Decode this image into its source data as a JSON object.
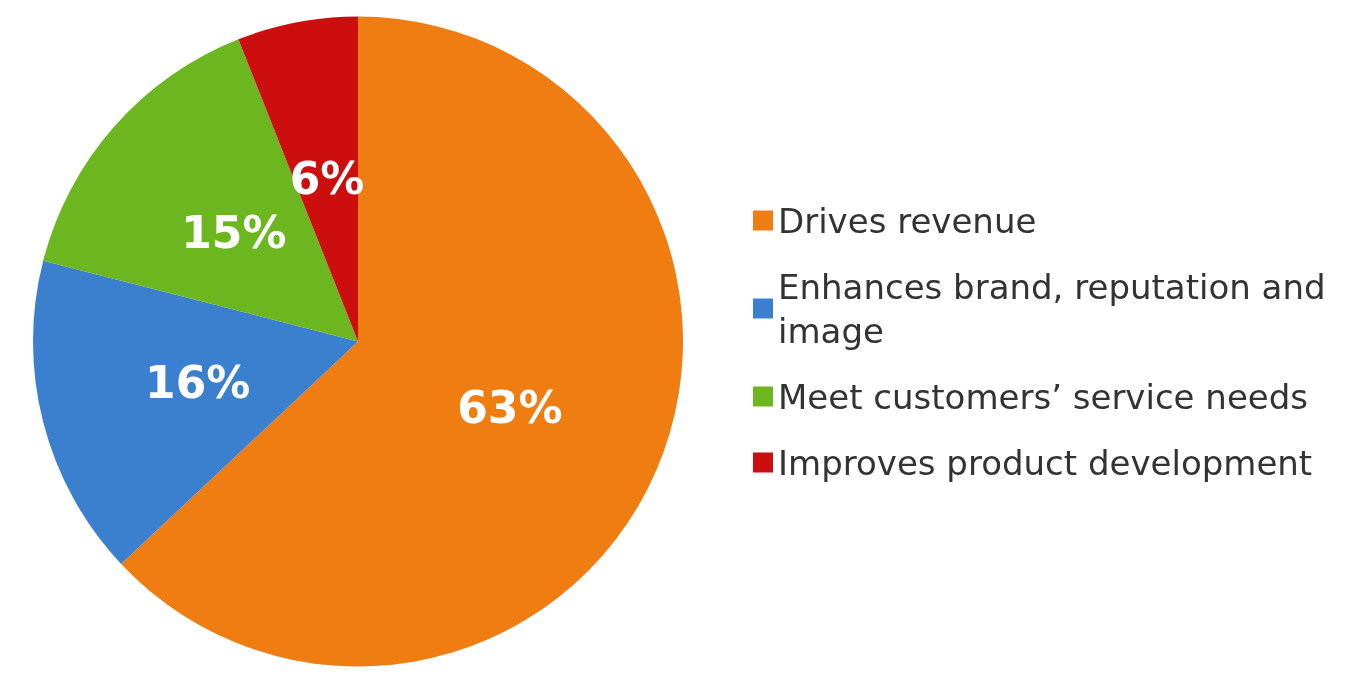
{
  "chart_data": {
    "type": "pie",
    "categories": [
      "Drives revenue",
      "Enhances brand, reputation and image",
      "Meet customers’ service needs",
      "Improves product development"
    ],
    "values": [
      63,
      16,
      15,
      6
    ],
    "value_labels": [
      "63%",
      "16%",
      "15%",
      "6%"
    ],
    "colors": [
      "#f07d12",
      "#3b7fcf",
      "#6cb61f",
      "#cc0e0e"
    ],
    "legend": "right"
  }
}
